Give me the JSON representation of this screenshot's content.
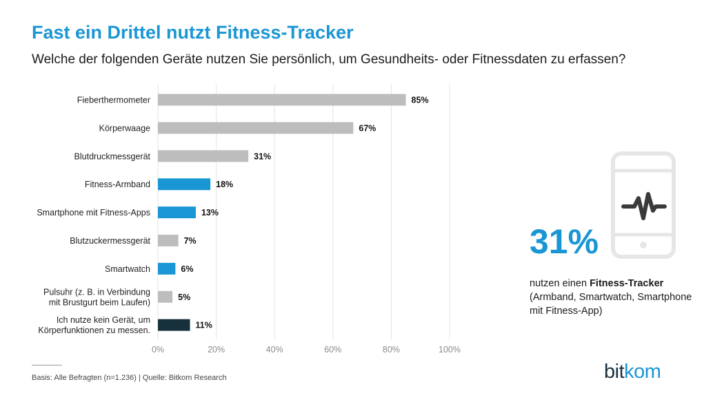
{
  "header": {
    "title": "Fast ein Drittel nutzt Fitness-Tracker",
    "subtitle": "Welche der folgenden Geräte nutzen Sie persönlich, um Gesundheits- oder Fitnessdaten zu erfassen?"
  },
  "chart_data": {
    "type": "bar",
    "orientation": "horizontal",
    "title": "Fast ein Drittel nutzt Fitness-Tracker",
    "subtitle": "Welche der folgenden Geräte nutzen Sie persönlich, um Gesundheits- oder Fitnessdaten zu erfassen?",
    "categories": [
      [
        "Fieberthermometer"
      ],
      [
        "Körperwaage"
      ],
      [
        "Blutdruckmessgerät"
      ],
      [
        "Fitness-Armband"
      ],
      [
        "Smartphone mit Fitness-Apps"
      ],
      [
        "Blutzuckermessgerät"
      ],
      [
        "Smartwatch"
      ],
      [
        "Pulsuhr (z. B. in Verbindung",
        "mit Brustgurt beim Laufen)"
      ],
      [
        "Ich nutze kein Gerät, um",
        "Körperfunktionen zu messen."
      ]
    ],
    "values": [
      85,
      67,
      31,
      18,
      13,
      7,
      6,
      5,
      11
    ],
    "value_labels": [
      "85%",
      "67%",
      "31%",
      "18%",
      "13%",
      "7%",
      "6%",
      "5%",
      "11%"
    ],
    "bar_colors": [
      "#bdbdbd",
      "#bdbdbd",
      "#bdbdbd",
      "#1a96d4",
      "#1a96d4",
      "#bdbdbd",
      "#1a96d4",
      "#bdbdbd",
      "#16303c"
    ],
    "xlim": [
      0,
      100
    ],
    "xticks": [
      0,
      20,
      40,
      60,
      80,
      100
    ],
    "xtick_labels": [
      "0%",
      "20%",
      "40%",
      "60%",
      "80%",
      "100%"
    ],
    "grid": true
  },
  "callout": {
    "value": "31%",
    "text_prefix": "nutzen einen ",
    "text_bold": "Fitness-Tracker",
    "text_detail": "(Armband, Smartwatch, Smartphone mit Fitness-App)",
    "icon": "smartphone-pulse-icon"
  },
  "footer": {
    "source": "Basis: Alle Befragten (n=1.236) | Quelle: Bitkom Research"
  },
  "logo": {
    "part1": "bit",
    "part2": "kom"
  },
  "colors": {
    "accent": "#1a96d4",
    "gray_bar": "#bdbdbd",
    "dark_bar": "#16303c",
    "icon": "#e6e6e6",
    "icon_line": "#3a3a3a"
  }
}
